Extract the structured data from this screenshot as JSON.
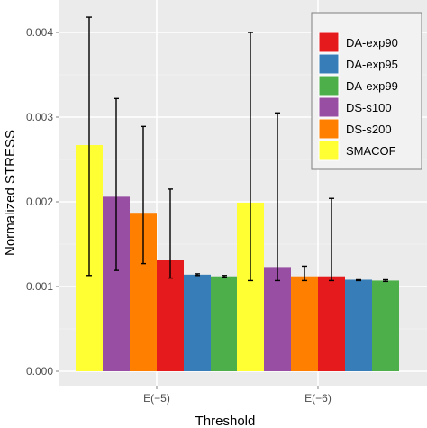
{
  "chart_data": {
    "type": "bar",
    "xlabel": "Threshold",
    "ylabel": "Normalized STRESS",
    "categories": [
      "E(−5)",
      "E(−6)"
    ],
    "ylim": [
      0,
      0.0044
    ],
    "yticks": [
      0,
      0.001,
      0.002,
      0.003,
      0.004
    ],
    "ytick_labels": [
      "0.000",
      "0.001",
      "0.002",
      "0.003",
      "0.004"
    ],
    "grid": true,
    "error_bars": true,
    "legend_position": "top-right",
    "series": [
      {
        "name": "SMACOF",
        "color": "#ffff33",
        "values": [
          0.00267,
          0.00199
        ],
        "err_low": [
          0.00113,
          0.00107
        ],
        "err_high": [
          0.00418,
          0.004
        ]
      },
      {
        "name": "DS-s100",
        "color": "#984ea3",
        "values": [
          0.00206,
          0.00123
        ],
        "err_low": [
          0.00119,
          0.00107
        ],
        "err_high": [
          0.00322,
          0.00305
        ]
      },
      {
        "name": "DS-s200",
        "color": "#ff7f00",
        "values": [
          0.00187,
          0.00112
        ],
        "err_low": [
          0.00127,
          0.00107
        ],
        "err_high": [
          0.00289,
          0.00124
        ]
      },
      {
        "name": "DA-exp90",
        "color": "#e41a1c",
        "values": [
          0.00131,
          0.00112
        ],
        "err_low": [
          0.0011,
          0.00107
        ],
        "err_high": [
          0.00215,
          0.00204
        ]
      },
      {
        "name": "DA-exp95",
        "color": "#377eb8",
        "values": [
          0.00114,
          0.00108
        ],
        "err_low": [
          0.00113,
          0.00107
        ],
        "err_high": [
          0.00115,
          0.00108
        ]
      },
      {
        "name": "DA-exp99",
        "color": "#4daf4a",
        "values": [
          0.00112,
          0.00107
        ],
        "err_low": [
          0.00111,
          0.00106
        ],
        "err_high": [
          0.00113,
          0.00108
        ]
      }
    ],
    "legend_order": [
      "DA-exp90",
      "DA-exp95",
      "DA-exp99",
      "DS-s100",
      "DS-s200",
      "SMACOF"
    ]
  }
}
